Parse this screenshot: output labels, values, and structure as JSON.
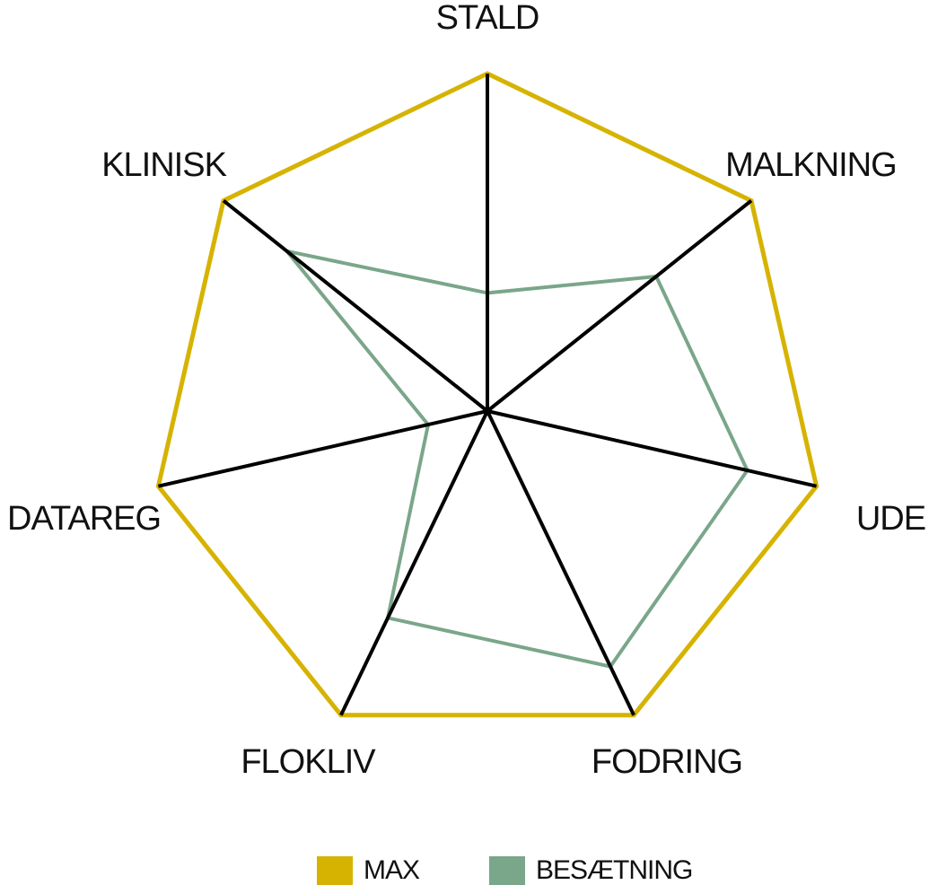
{
  "chart_data": {
    "type": "radar",
    "categories": [
      "STALD",
      "MALKNING",
      "UDE",
      "FODRING",
      "FLOKLIV",
      "DATAREG",
      "KLINISK"
    ],
    "rlim": [
      0,
      100
    ],
    "series": [
      {
        "name": "MAX",
        "color": "#d6b300",
        "values": [
          100,
          100,
          100,
          100,
          100,
          100,
          100
        ]
      },
      {
        "name": "BESÆTNING",
        "color": "#7aa68a",
        "values": [
          35,
          64,
          79,
          84,
          68,
          18,
          76
        ]
      }
    ],
    "legend": "bottom"
  }
}
